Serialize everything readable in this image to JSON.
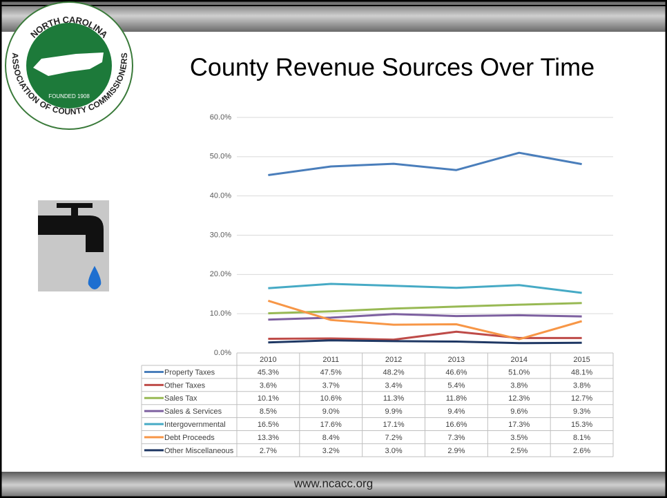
{
  "logo": {
    "top": "NORTH CAROLINA",
    "bottom": "ASSOCIATION OF COUNTY COMMISSIONERS",
    "founded": "FOUNDED 1908"
  },
  "footer": "www.ncacc.org",
  "chart_data": {
    "type": "line",
    "title": "County Revenue Sources Over Time",
    "categories": [
      "2010",
      "2011",
      "2012",
      "2013",
      "2014",
      "2015"
    ],
    "ylim": [
      0,
      60
    ],
    "yticks": [
      {
        "value": 0,
        "label": "0.0%"
      },
      {
        "value": 10,
        "label": "10.0%"
      },
      {
        "value": 20,
        "label": "20.0%"
      },
      {
        "value": 30,
        "label": "30.0%"
      },
      {
        "value": 40,
        "label": "40.0%"
      },
      {
        "value": 50,
        "label": "50.0%"
      },
      {
        "value": 60,
        "label": "60.0%"
      }
    ],
    "grid": true,
    "series": [
      {
        "name": "Property Taxes",
        "color": "#4a7ebb",
        "values": [
          45.3,
          47.5,
          48.2,
          46.6,
          51.0,
          48.1
        ],
        "value_labels": [
          "45.3%",
          "47.5%",
          "48.2%",
          "46.6%",
          "51.0%",
          "48.1%"
        ]
      },
      {
        "name": "Other Taxes",
        "color": "#be4b48",
        "values": [
          3.6,
          3.7,
          3.4,
          5.4,
          3.8,
          3.8
        ],
        "value_labels": [
          "3.6%",
          "3.7%",
          "3.4%",
          "5.4%",
          "3.8%",
          "3.8%"
        ]
      },
      {
        "name": "Sales Tax",
        "color": "#98b954",
        "values": [
          10.1,
          10.6,
          11.3,
          11.8,
          12.3,
          12.7
        ],
        "value_labels": [
          "10.1%",
          "10.6%",
          "11.3%",
          "11.8%",
          "12.3%",
          "12.7%"
        ]
      },
      {
        "name": "Sales & Services",
        "color": "#7d60a0",
        "values": [
          8.5,
          9.0,
          9.9,
          9.4,
          9.6,
          9.3
        ],
        "value_labels": [
          "8.5%",
          "9.0%",
          "9.9%",
          "9.4%",
          "9.6%",
          "9.3%"
        ]
      },
      {
        "name": "Intergovernmental",
        "color": "#46aac5",
        "values": [
          16.5,
          17.6,
          17.1,
          16.6,
          17.3,
          15.3
        ],
        "value_labels": [
          "16.5%",
          "17.6%",
          "17.1%",
          "16.6%",
          "17.3%",
          "15.3%"
        ]
      },
      {
        "name": "Debt Proceeds",
        "color": "#f79646",
        "values": [
          13.3,
          8.4,
          7.2,
          7.3,
          3.5,
          8.1
        ],
        "value_labels": [
          "13.3%",
          "8.4%",
          "7.2%",
          "7.3%",
          "3.5%",
          "8.1%"
        ]
      },
      {
        "name": "Other Miscellaneous",
        "color": "#1f3864",
        "values": [
          2.7,
          3.2,
          3.0,
          2.9,
          2.5,
          2.6
        ],
        "value_labels": [
          "2.7%",
          "3.2%",
          "3.0%",
          "2.9%",
          "2.5%",
          "2.6%"
        ]
      }
    ]
  }
}
